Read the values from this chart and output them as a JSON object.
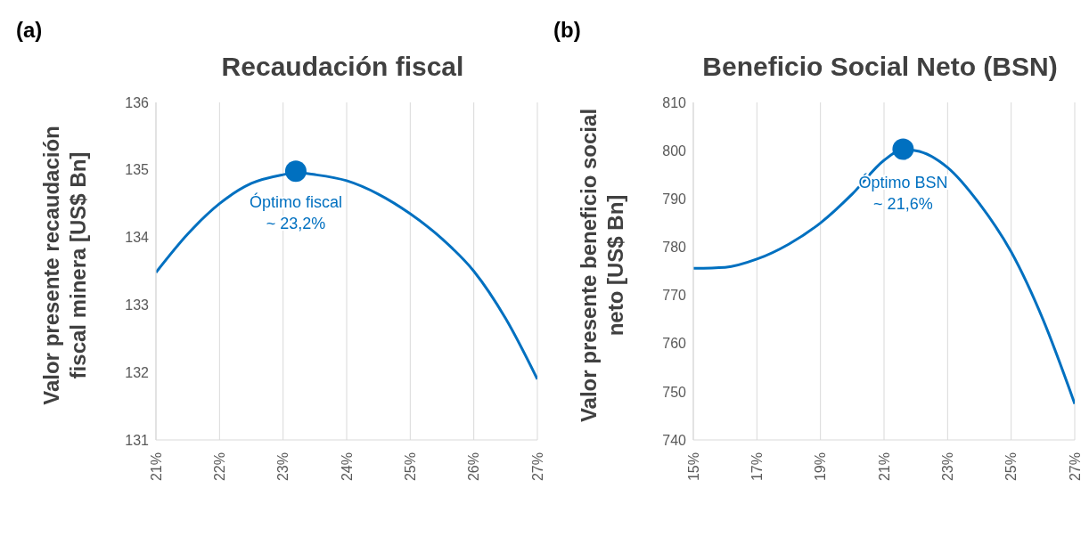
{
  "chart_data": [
    {
      "type": "line",
      "title": "Recaudación fiscal",
      "ylabel": "Valor presente recaudación fiscal minera [US$ Bn]",
      "annotations": [
        "(a)",
        {
          "text": "Óptimo fiscal\n~ 23,2%",
          "x": 23.2,
          "y": 135
        }
      ],
      "x": [
        21,
        21.5,
        22,
        22.5,
        23,
        23.2,
        23.5,
        24,
        24.5,
        25,
        25.5,
        26,
        26.5,
        27
      ],
      "series": [
        {
          "color": "#0070c0",
          "values": [
            133.48,
            134.05,
            134.5,
            134.8,
            134.93,
            134.96,
            134.93,
            134.84,
            134.64,
            134.35,
            133.98,
            133.5,
            132.8,
            131.9
          ]
        },
        {
          "type": "scatter",
          "color": "#0070c0",
          "x": [
            23.2
          ],
          "values": [
            134.98
          ]
        }
      ],
      "xlim": [
        21,
        27
      ],
      "xticks": [
        {
          "value": 21,
          "label": "21%"
        },
        {
          "value": 22,
          "label": "22%"
        },
        {
          "value": 23,
          "label": "23%"
        },
        {
          "value": 24,
          "label": "24%"
        },
        {
          "value": 25,
          "label": "25%"
        },
        {
          "value": 26,
          "label": "26%"
        },
        {
          "value": 27,
          "label": "27%"
        }
      ],
      "ylim": [
        131,
        136
      ],
      "yticks": [
        131,
        132,
        133,
        134,
        135,
        136
      ],
      "grid": "x"
    },
    {
      "type": "line",
      "title": "Beneficio Social Neto (BSN)",
      "ylabel": "Valor presente beneficio social neto [US$ Bn]",
      "annotations": [
        "(b)",
        {
          "text": "Óptimo BSN\n~ 21,6%",
          "x": 21.6,
          "y": 800
        }
      ],
      "x": [
        15,
        16,
        17,
        18,
        19,
        20,
        21,
        21.6,
        22,
        23,
        24,
        25,
        26,
        27
      ],
      "series": [
        {
          "color": "#0070c0",
          "values": [
            775.6,
            775.8,
            777.5,
            780.6,
            785,
            791,
            798,
            800.2,
            800,
            796.5,
            789,
            779,
            765,
            747.5
          ]
        },
        {
          "type": "scatter",
          "color": "#0070c0",
          "x": [
            21.6
          ],
          "values": [
            800.3
          ]
        }
      ],
      "xlim": [
        15,
        27
      ],
      "xticks": [
        {
          "value": 15,
          "label": "15%"
        },
        {
          "value": 17,
          "label": "17%"
        },
        {
          "value": 19,
          "label": "19%"
        },
        {
          "value": 21,
          "label": "21%"
        },
        {
          "value": 23,
          "label": "23%"
        },
        {
          "value": 25,
          "label": "25%"
        },
        {
          "value": 27,
          "label": "27%"
        }
      ],
      "ylim": [
        740,
        810
      ],
      "yticks": [
        740,
        750,
        760,
        770,
        780,
        790,
        800,
        810
      ],
      "grid": "x"
    }
  ]
}
